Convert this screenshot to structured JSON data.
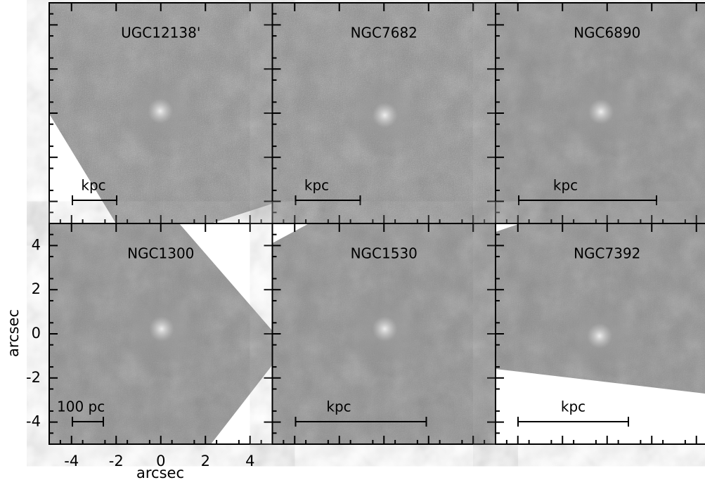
{
  "panels": [
    {
      "title": "UGC12138'",
      "scale_label": "kpc"
    },
    {
      "title": "NGC7682",
      "scale_label": "kpc"
    },
    {
      "title": "NGC6890",
      "scale_label": "kpc"
    },
    {
      "title": "NGC1300",
      "scale_label": "100 pc"
    },
    {
      "title": "NGC1530",
      "scale_label": "kpc"
    },
    {
      "title": "NGC7392",
      "scale_label": "kpc"
    }
  ],
  "axes": {
    "xlabel": "arcsec",
    "ylabel": "arcsec",
    "xlim": [
      -5,
      5
    ],
    "ylim": [
      -5,
      5
    ],
    "xticks": [
      -4,
      -2,
      0,
      2,
      4
    ],
    "yticks": [
      -4,
      -2,
      0,
      2,
      4
    ]
  }
}
